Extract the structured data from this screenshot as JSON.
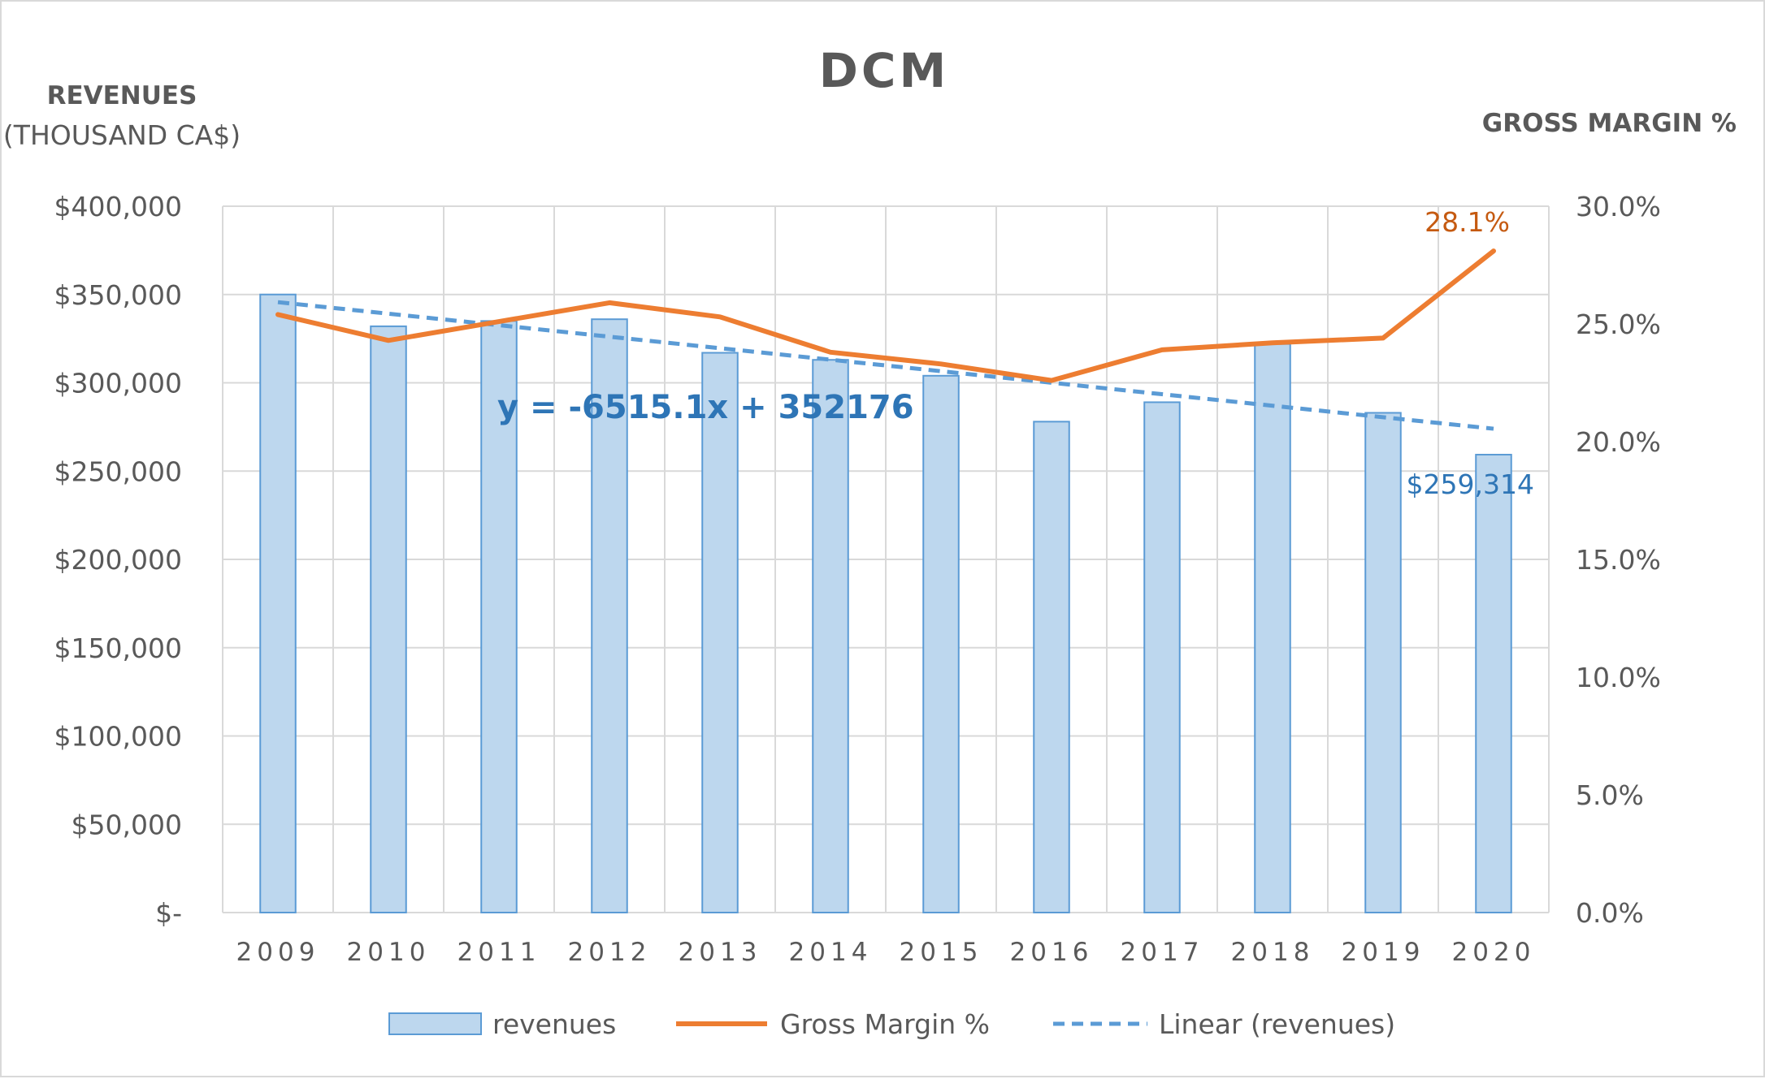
{
  "chart_data": {
    "type": "bar",
    "title": "DCM",
    "y_left_label": "REVENUES",
    "y_left_sublabel": "(THOUSAND CA$)",
    "y_right_label": "GROSS MARGIN %",
    "categories": [
      "2009",
      "2010",
      "2011",
      "2012",
      "2013",
      "2014",
      "2015",
      "2016",
      "2017",
      "2018",
      "2019",
      "2020"
    ],
    "ylim_left": [
      0,
      400000
    ],
    "ylim_right": [
      0,
      0.3
    ],
    "y_left_ticks": [
      {
        "value": 0,
        "label": "$-"
      },
      {
        "value": 50000,
        "label": "$50,000"
      },
      {
        "value": 100000,
        "label": "$100,000"
      },
      {
        "value": 150000,
        "label": "$150,000"
      },
      {
        "value": 200000,
        "label": "$200,000"
      },
      {
        "value": 250000,
        "label": "$250,000"
      },
      {
        "value": 300000,
        "label": "$300,000"
      },
      {
        "value": 350000,
        "label": "$350,000"
      },
      {
        "value": 400000,
        "label": "$400,000"
      }
    ],
    "y_right_ticks": [
      {
        "value": 0,
        "label": "0.0%"
      },
      {
        "value": 0.05,
        "label": "5.0%"
      },
      {
        "value": 0.1,
        "label": "10.0%"
      },
      {
        "value": 0.15,
        "label": "15.0%"
      },
      {
        "value": 0.2,
        "label": "20.0%"
      },
      {
        "value": 0.25,
        "label": "25.0%"
      },
      {
        "value": 0.3,
        "label": "30.0%"
      }
    ],
    "series": [
      {
        "name": "revenues",
        "type": "bar",
        "axis": "left",
        "color": "#bdd7ee",
        "edge_color": "#5b9bd5",
        "values": [
          350000,
          332000,
          335000,
          336000,
          317000,
          313000,
          304000,
          278000,
          289000,
          322000,
          283000,
          259314
        ]
      },
      {
        "name": "Gross Margin %",
        "type": "line",
        "axis": "right",
        "color": "#ed7d31",
        "values": [
          0.254,
          0.243,
          0.251,
          0.259,
          0.253,
          0.238,
          0.233,
          0.226,
          0.239,
          0.242,
          0.244,
          0.281
        ]
      },
      {
        "name": "Linear (revenues)",
        "type": "trendline",
        "axis": "left",
        "color": "#5b9bd5",
        "dashed": true,
        "slope": -6515.1,
        "intercept": 352176
      }
    ],
    "annotations": {
      "equation": "y = -6515.1x + 352176",
      "last_revenue_label": "$259,314",
      "last_margin_label": "28.1%"
    },
    "grid": true,
    "legend_position": "bottom"
  }
}
